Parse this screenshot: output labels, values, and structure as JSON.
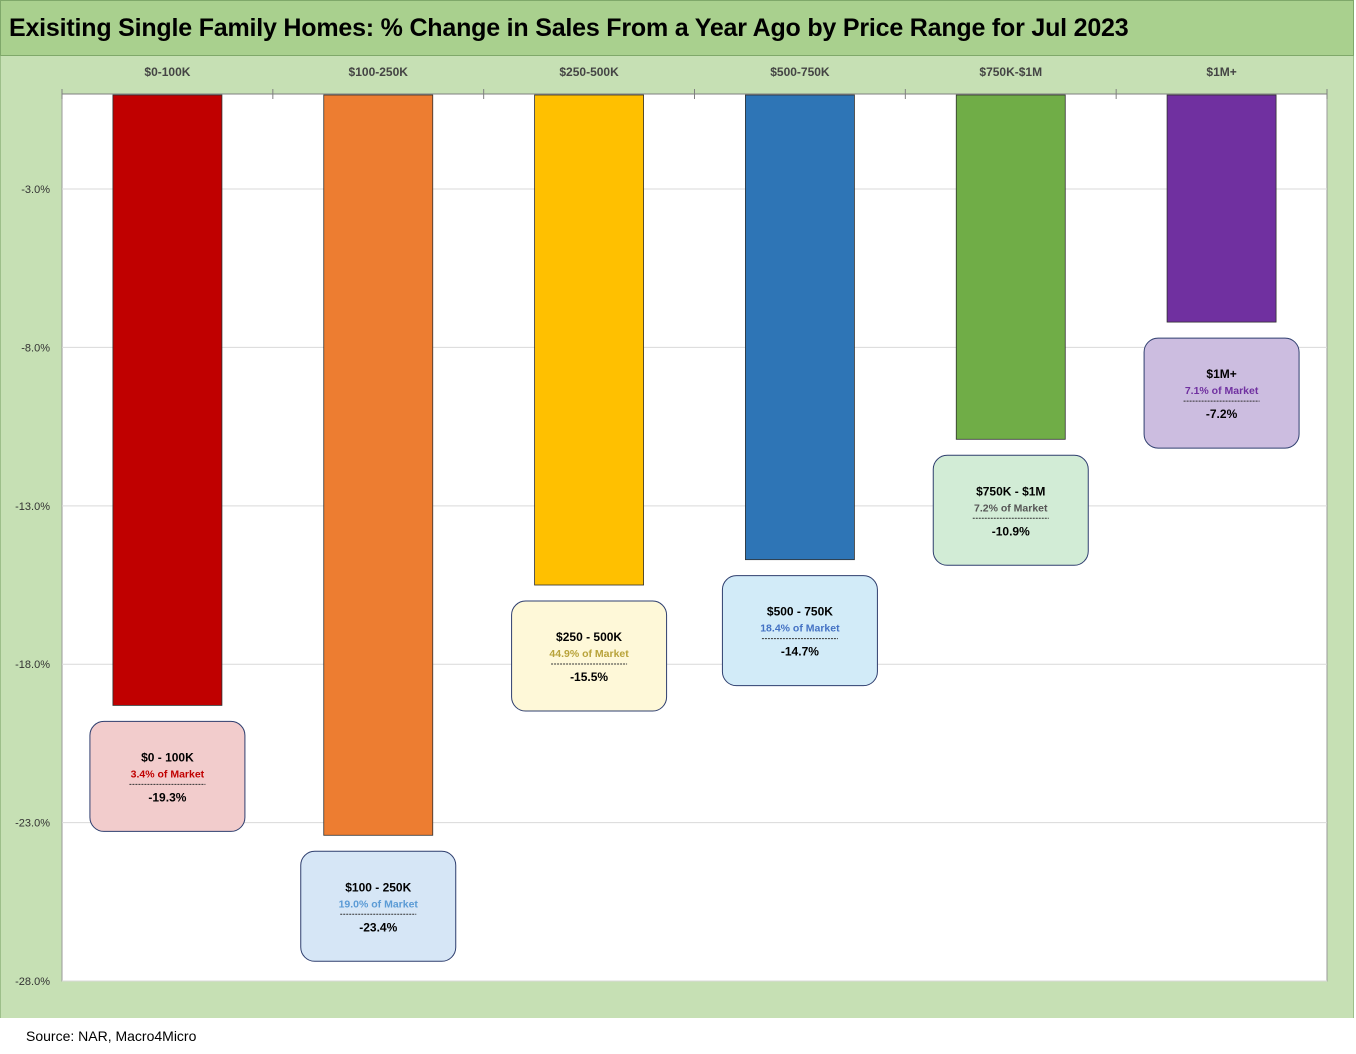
{
  "title": "Exisiting Single Family Homes: % Change in Sales From a Year Ago by Price Range for Jul 2023",
  "source": "Source: NAR, Macro4Micro",
  "chart_data": {
    "type": "bar",
    "title": "Exisiting Single Family Homes: % Change in Sales From a Year Ago by Price Range for Jul 2023",
    "categories": [
      "$0-100K",
      "$100-250K",
      "$250-500K",
      "$500-750K",
      "$750K-$1M",
      "$1M+"
    ],
    "values": [
      -19.3,
      -23.4,
      -15.5,
      -14.7,
      -10.9,
      -7.2
    ],
    "ylim": [
      -28,
      0
    ],
    "yticks": [
      -3,
      -8,
      -13,
      -18,
      -23,
      -28
    ],
    "ytick_labels": [
      "-3.0%",
      "-8.0%",
      "-13.0%",
      "-18.0%",
      "-23.0%",
      "-28.0%"
    ],
    "x_axis_position": "top",
    "grid": true,
    "colors": [
      "#c00000",
      "#ed7d31",
      "#ffc000",
      "#2e75b6",
      "#70ad47",
      "#7030a0"
    ],
    "annotations": [
      {
        "title": "$0 - 100K",
        "share": "3.4% of Market",
        "value": "-19.3%",
        "fill": "#f2cccc",
        "share_color": "#c00000"
      },
      {
        "title": "$100 - 250K",
        "share": "19.0% of Market",
        "value": "-23.4%",
        "fill": "#d6e6f6",
        "share_color": "#5b9bd5"
      },
      {
        "title": "$250 - 500K",
        "share": "44.9% of Market",
        "value": "-15.5%",
        "fill": "#fef8d8",
        "share_color": "#b8a33a"
      },
      {
        "title": "$500 - 750K",
        "share": "18.4% of Market",
        "value": "-14.7%",
        "fill": "#d2ebf8",
        "share_color": "#4472c4"
      },
      {
        "title": "$750K - $1M",
        "share": "7.2% of Market",
        "value": "-10.9%",
        "fill": "#d2ecd6",
        "share_color": "#555555"
      },
      {
        "title": "$1M+",
        "share": "7.1% of Market",
        "value": "-7.2%",
        "fill": "#ccbde0",
        "share_color": "#7030a0"
      }
    ]
  }
}
